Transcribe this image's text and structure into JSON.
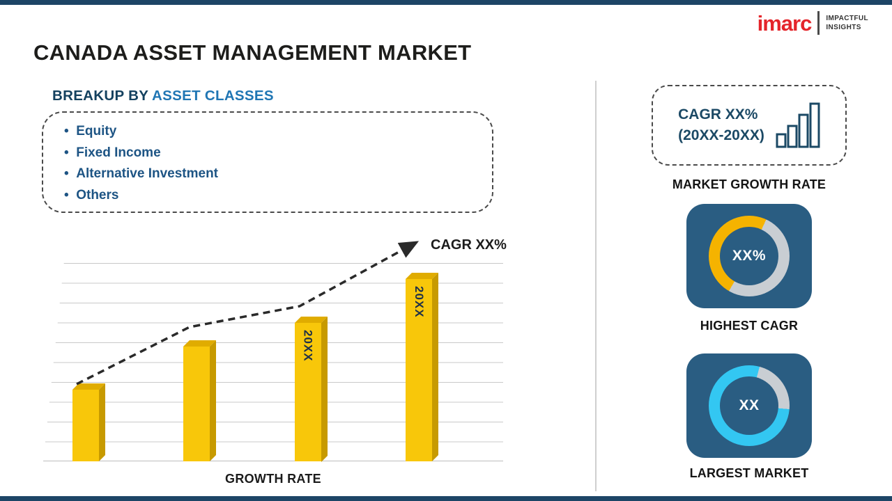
{
  "header": {
    "title": "CANADA ASSET MANAGEMENT MARKET"
  },
  "logo": {
    "brand": "imarc",
    "tagline": [
      "IMPACTFUL",
      "INSIGHTS"
    ]
  },
  "breakup": {
    "heading_prefix": "BREAKUP BY ",
    "heading_highlight": "ASSET CLASSES",
    "items": [
      "Equity",
      "Fixed Income",
      "Alternative Investment",
      "Others"
    ]
  },
  "chart_data": {
    "type": "bar",
    "title": "",
    "categories": [
      "bar-1",
      "bar-2",
      "bar-3",
      "bar-4"
    ],
    "values": [
      36,
      58,
      70,
      92
    ],
    "values_unit": "relative_height_pct_no_axis_shown",
    "bar_labels": [
      "",
      "",
      "20XX",
      "20XX"
    ],
    "xlabel": "GROWTH RATE",
    "ylabel": "",
    "trend_label": "CAGR XX%",
    "grid": "horizontal",
    "legend_position": "none"
  },
  "sidebar": {
    "growth_box": {
      "line1": "CAGR XX%",
      "line2": "(20XX-20XX)"
    },
    "market_growth_label": "MARKET GROWTH RATE",
    "highest_cagr": {
      "value": "XX%",
      "label": "HIGHEST CAGR",
      "accent": "#f5b300",
      "arc": {
        "start": 210,
        "end": 385
      }
    },
    "largest_market": {
      "value": "XX",
      "label": "LARGEST MARKET",
      "accent": "#33c7f2",
      "arc": {
        "start": 95,
        "end": 375
      }
    }
  },
  "colors": {
    "navy_strip": "#1d4566",
    "tile_bg": "#2a5d82",
    "bar_front": "#f8c70a",
    "bar_side": "#c79a00",
    "bar_top": "#e0ac00",
    "ring_base": "#c9ced3",
    "brand_red": "#e4252b",
    "heading_blue": "#2076b4",
    "text_navy": "#1b4965"
  }
}
